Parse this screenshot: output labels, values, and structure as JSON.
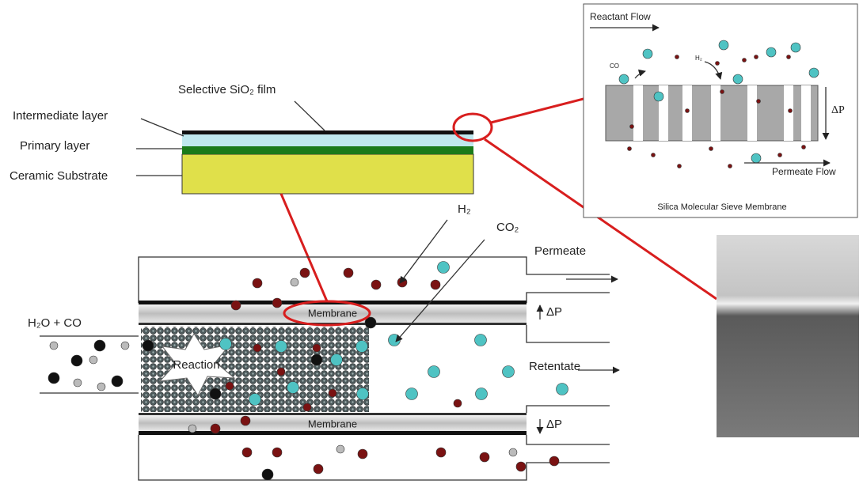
{
  "layer_diagram": {
    "film_label": "Selective SiO₂ film",
    "layers": [
      "Intermediate layer",
      "Primary layer",
      "Ceramic Substrate"
    ]
  },
  "inset": {
    "flow_in": "Reactant Flow",
    "co_label": "CO",
    "h2_label": "H₂",
    "pressure": "ΔP",
    "flow_out": "Permeate Flow",
    "caption": "Silica Molecular Sieve Membrane"
  },
  "reactor": {
    "h2_label": "H₂",
    "co2_label": "CO₂",
    "permeate": "Permeate",
    "feed": "H₂O + CO",
    "reaction": "Reaction",
    "retentate": "Retentate",
    "membranes": [
      "Membrane",
      "Membrane"
    ],
    "pressures": [
      "ΔP",
      "ΔP"
    ]
  }
}
